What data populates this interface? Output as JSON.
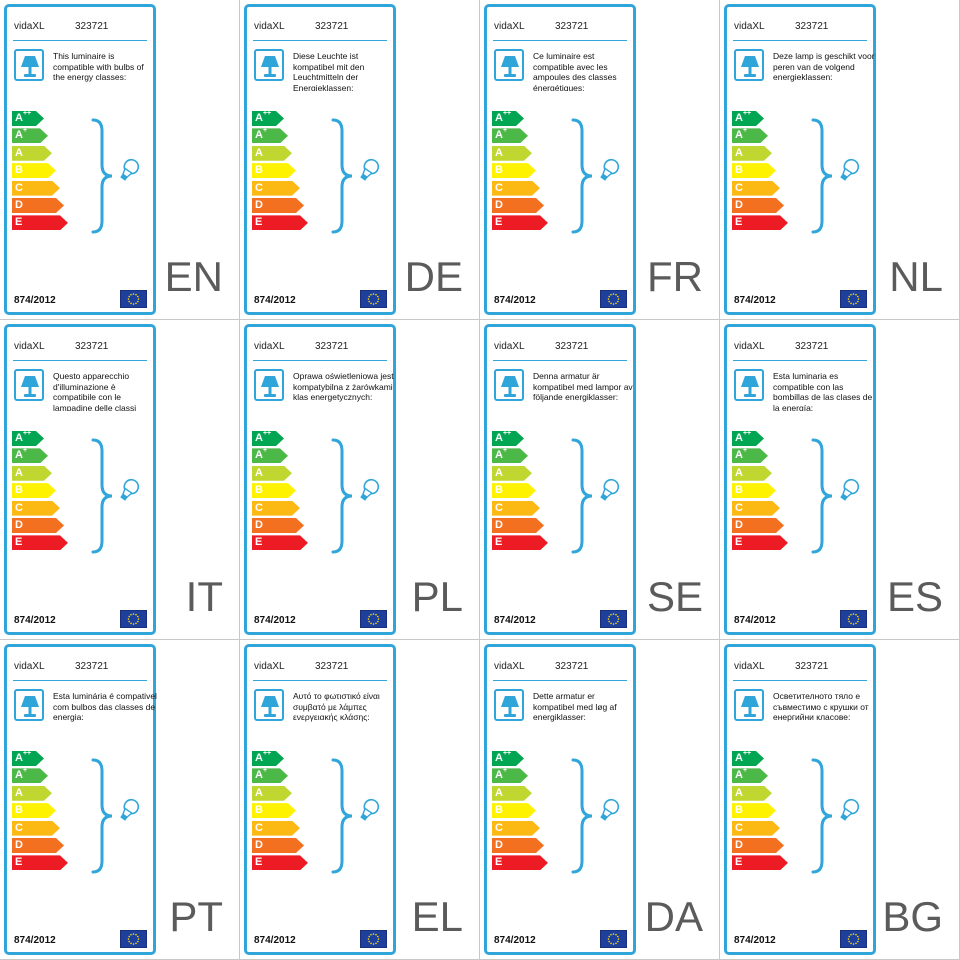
{
  "brand": "vidaXL",
  "model": "323721",
  "regulation": "874/2012",
  "colors": {
    "frame": "#2fa5da",
    "class_colors": [
      "#00a651",
      "#4cb848",
      "#bfd730",
      "#fff200",
      "#fdb913",
      "#f37021",
      "#ed1c24"
    ],
    "eu_flag": "#1e3f9c"
  },
  "energy_classes": [
    {
      "base": "A",
      "sup": "++"
    },
    {
      "base": "A",
      "sup": "+"
    },
    {
      "base": "A",
      "sup": ""
    },
    {
      "base": "B",
      "sup": ""
    },
    {
      "base": "C",
      "sup": ""
    },
    {
      "base": "D",
      "sup": ""
    },
    {
      "base": "E",
      "sup": ""
    }
  ],
  "icons": {
    "lamp": "table-lamp-icon",
    "brace": "curly-brace-icon",
    "bulb": "light-bulb-icon",
    "flag": "eu-flag-icon"
  },
  "labels": [
    {
      "lang": "EN",
      "text": "This luminaire is compatible with bulbs of the energy classes:"
    },
    {
      "lang": "DE",
      "text": "Diese Leuchte ist kompatibel mit den Leuchtmitteln der Energieklassen:"
    },
    {
      "lang": "FR",
      "text": "Ce luminaire est compatible avec les ampoules des classes énergétiques:"
    },
    {
      "lang": "NL",
      "text": "Deze lamp is geschikt voor peren van de volgend energieklassen:"
    },
    {
      "lang": "IT",
      "text": "Questo apparecchio d'illuminazione è compatibile con le lampadine delle classi energetiche:"
    },
    {
      "lang": "PL",
      "text": "Oprawa oświetleniowa jest kompatybilna z żarówkami klas energetycznych:"
    },
    {
      "lang": "SE",
      "text": "Denna armatur är kompatibel med lampor av följande energiklasser:"
    },
    {
      "lang": "ES",
      "text": "Esta luminaria es compatible con las bombillas de las clases de la energía:"
    },
    {
      "lang": "PT",
      "text": "Esta luminária é compativel com bulbos das classes de energia:"
    },
    {
      "lang": "EL",
      "text": "Αυτό το φωτιστικό είναι συμβατό με λάμπες ενεργειακής κλάσης:"
    },
    {
      "lang": "DA",
      "text": "Dette armatur er kompatibel med løg af energiklasser:"
    },
    {
      "lang": "BG",
      "text": "Осветителното тяло е съвместимо с крушки от енергийни класове:"
    }
  ]
}
